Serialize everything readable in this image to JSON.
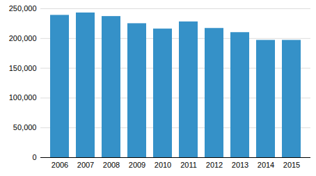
{
  "chart_data": {
    "type": "bar",
    "categories": [
      "2006",
      "2007",
      "2008",
      "2009",
      "2010",
      "2011",
      "2012",
      "2013",
      "2014",
      "2015"
    ],
    "values": [
      239000,
      243000,
      237000,
      225000,
      216000,
      228000,
      217000,
      210000,
      197000,
      197000
    ],
    "color": "#3591c8",
    "ylim": [
      0,
      250000
    ],
    "yticks": [
      0,
      {
        "value": 50000,
        "label": "50,000"
      },
      {
        "value": 100000,
        "label": "100,000"
      },
      {
        "value": 150000,
        "label": "150,000"
      },
      {
        "value": 200000,
        "label": "200,000"
      },
      {
        "value": 250000,
        "label": "250,000"
      }
    ],
    "grid": true
  }
}
